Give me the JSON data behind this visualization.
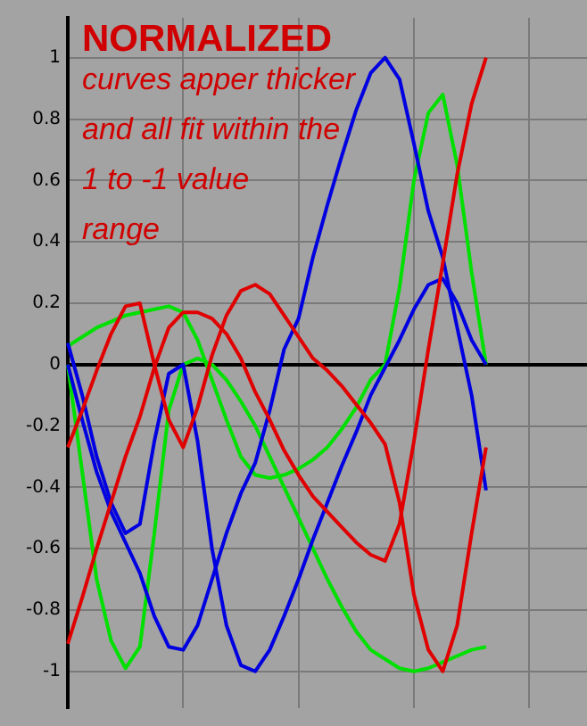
{
  "chart_data": {
    "type": "line",
    "title": "NORMALIZED",
    "subtitle": "curves apper thicker and all fit within the 1 to -1 value range",
    "categories": [
      null,
      null,
      null,
      null,
      null,
      null,
      null,
      null,
      null,
      null,
      null,
      null,
      null,
      null,
      null,
      null,
      null,
      null,
      null,
      null,
      null,
      null,
      null,
      null,
      null,
      null,
      null,
      null,
      null,
      null,
      null,
      null,
      null,
      null,
      null,
      null,
      null
    ],
    "ylim": [
      -1.12,
      1.13
    ],
    "yticks": [
      -1,
      -0.8,
      -0.6,
      -0.4,
      -0.2,
      0,
      0.2,
      0.4,
      0.6,
      0.8,
      1
    ],
    "grid": true,
    "legend": false,
    "marker": "none",
    "line_style": "solid",
    "series": [
      {
        "color": "#e00000",
        "values": [
          -0.27,
          -0.15,
          -0.02,
          0.1,
          0.19,
          0.2,
          0.0,
          -0.18,
          -0.27,
          -0.14,
          0.03,
          0.16,
          0.24,
          0.26,
          0.23,
          0.16,
          0.09,
          0.02,
          -0.02,
          -0.07,
          -0.13,
          -0.19,
          -0.26,
          -0.45,
          -0.75,
          -0.93,
          -1.0,
          -0.85,
          -0.55,
          -0.27,
          null,
          null,
          null,
          null,
          null,
          null,
          null
        ]
      },
      {
        "color": "#e00000",
        "values": [
          -0.91,
          -0.76,
          -0.6,
          -0.45,
          -0.3,
          -0.17,
          -0.01,
          0.12,
          0.17,
          0.17,
          0.15,
          0.1,
          0.02,
          -0.09,
          -0.18,
          -0.28,
          -0.36,
          -0.43,
          -0.48,
          -0.53,
          -0.58,
          -0.62,
          -0.64,
          -0.52,
          -0.25,
          0.05,
          0.33,
          0.62,
          0.85,
          1.0,
          null,
          null,
          null,
          null,
          null,
          null,
          null
        ]
      },
      {
        "color": "#0000e0",
        "values": [
          0.07,
          -0.1,
          -0.3,
          -0.45,
          -0.55,
          -0.52,
          -0.25,
          -0.03,
          0.0,
          -0.25,
          -0.6,
          -0.85,
          -0.98,
          -1.0,
          -0.93,
          -0.82,
          -0.7,
          -0.57,
          -0.45,
          -0.33,
          -0.22,
          -0.1,
          -0.01,
          0.08,
          0.18,
          0.26,
          0.28,
          0.2,
          0.08,
          0.0,
          null,
          null,
          null,
          null,
          null,
          null,
          null
        ]
      },
      {
        "color": "#0000e0",
        "values": [
          0.0,
          -0.18,
          -0.35,
          -0.48,
          -0.58,
          -0.68,
          -0.82,
          -0.92,
          -0.93,
          -0.85,
          -0.7,
          -0.55,
          -0.42,
          -0.32,
          -0.15,
          0.05,
          0.15,
          0.35,
          0.52,
          0.68,
          0.83,
          0.95,
          1.0,
          0.93,
          0.72,
          0.5,
          0.35,
          0.12,
          -0.1,
          -0.41,
          null,
          null,
          null,
          null,
          null,
          null,
          null
        ]
      },
      {
        "color": "#00e000",
        "values": [
          0.06,
          0.09,
          0.12,
          0.14,
          0.16,
          0.17,
          0.18,
          0.19,
          0.17,
          0.08,
          -0.05,
          -0.18,
          -0.3,
          -0.36,
          -0.37,
          -0.36,
          -0.34,
          -0.31,
          -0.27,
          -0.21,
          -0.14,
          -0.05,
          0.0,
          0.25,
          0.6,
          0.82,
          0.88,
          0.65,
          0.3,
          0.0,
          null,
          null,
          null,
          null,
          null,
          null,
          null
        ]
      },
      {
        "color": "#00e000",
        "values": [
          0.0,
          -0.35,
          -0.7,
          -0.9,
          -0.99,
          -0.92,
          -0.55,
          -0.15,
          0.0,
          0.02,
          0.0,
          -0.05,
          -0.12,
          -0.2,
          -0.3,
          -0.4,
          -0.5,
          -0.6,
          -0.7,
          -0.79,
          -0.87,
          -0.93,
          -0.96,
          -0.99,
          -1.0,
          -0.99,
          -0.97,
          -0.95,
          -0.93,
          -0.92,
          null,
          null,
          null,
          null,
          null,
          null,
          null
        ]
      }
    ]
  }
}
